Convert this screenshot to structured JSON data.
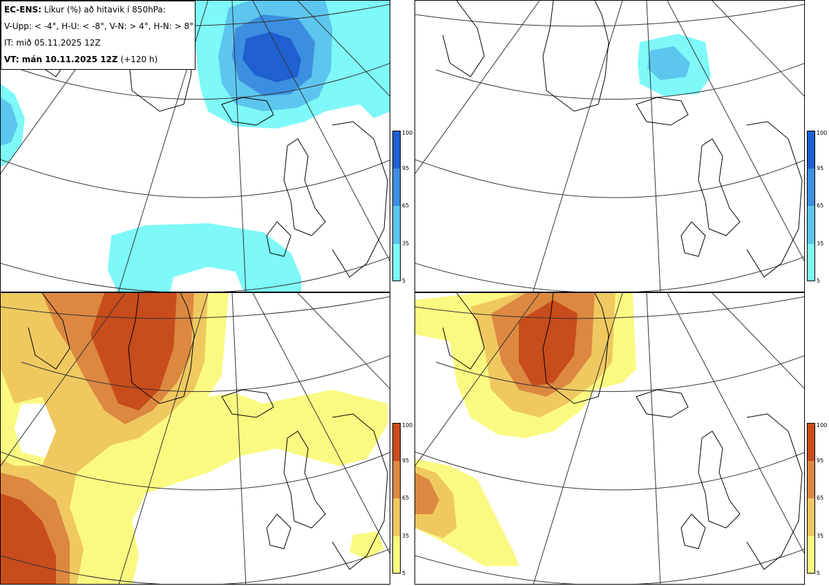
{
  "header": {
    "model": "EC-ENS:",
    "title_rest": "Líkur (%) að hitavik í 850hPa:",
    "thresholds": "V-Upp: < -4°, H-U: < -8°, V-N: > 4°, H-N: > 8°",
    "init_time": "IT: mið 05.11.2025 12Z",
    "valid_label": "VT: mán 10.11.2025 12Z",
    "lead": "(+120 h)"
  },
  "panels": [
    {
      "id": "v-upp",
      "description": "probability anomaly < -4°",
      "scheme": "cold"
    },
    {
      "id": "h-u",
      "description": "probability anomaly < -8°",
      "scheme": "cold"
    },
    {
      "id": "v-n",
      "description": "probability anomaly > 4°",
      "scheme": "warm"
    },
    {
      "id": "h-n",
      "description": "probability anomaly > 8°",
      "scheme": "warm"
    }
  ],
  "colorbar": {
    "ticks": [
      "100",
      "95",
      "65",
      "35",
      "5"
    ],
    "cold_colors": [
      "#1f5fd0",
      "#3c8fe0",
      "#5cc6ee",
      "#7ef8f8"
    ],
    "warm_colors": [
      "#c84c1c",
      "#dc8840",
      "#f0c860",
      "#fafa82"
    ]
  }
}
